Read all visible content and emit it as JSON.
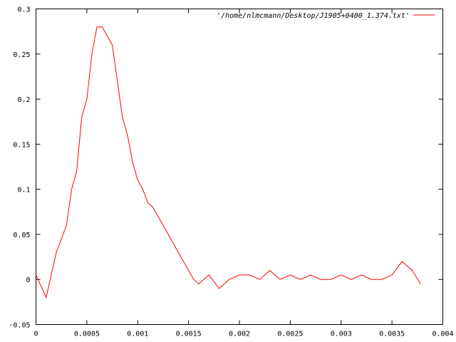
{
  "chart_data": {
    "type": "line",
    "title": "",
    "xlabel": "",
    "ylabel": "",
    "xlim": [
      0,
      0.004
    ],
    "ylim": [
      -0.05,
      0.3
    ],
    "grid": false,
    "legend_position": "top-right",
    "x_ticks": [
      "0",
      "0.0005",
      "0.001",
      "0.0015",
      "0.002",
      "0.0025",
      "0.003",
      "0.0035",
      "0.004"
    ],
    "x_tick_values": [
      0,
      0.0005,
      0.001,
      0.0015,
      0.002,
      0.0025,
      0.003,
      0.0035,
      0.004
    ],
    "y_ticks": [
      "-0.05",
      "0",
      "0.05",
      "0.1",
      "0.15",
      "0.2",
      "0.25",
      "0.3"
    ],
    "y_tick_values": [
      -0.05,
      0,
      0.05,
      0.1,
      0.15,
      0.2,
      0.25,
      0.3
    ],
    "series": [
      {
        "name": "'/home/nlmcmann/Desktop/J1905+0400_1.374.txt'",
        "color": "#ff0000",
        "x": [
          0.0,
          0.0001,
          0.0002,
          0.0003,
          0.00035,
          0.0004,
          0.00045,
          0.0005,
          0.00055,
          0.0006,
          0.00065,
          0.0007,
          0.00075,
          0.0008,
          0.00085,
          0.0009,
          0.00095,
          0.001,
          0.00105,
          0.0011,
          0.00115,
          0.0012,
          0.0013,
          0.0014,
          0.0015,
          0.00155,
          0.0016,
          0.0017,
          0.0018,
          0.0019,
          0.002,
          0.0021,
          0.0022,
          0.0023,
          0.0024,
          0.0025,
          0.0026,
          0.0027,
          0.0028,
          0.0029,
          0.003,
          0.0031,
          0.0032,
          0.0033,
          0.0034,
          0.0035,
          0.0036,
          0.0037,
          0.00378
        ],
        "y": [
          0.005,
          -0.02,
          0.03,
          0.06,
          0.1,
          0.12,
          0.18,
          0.2,
          0.25,
          0.28,
          0.28,
          0.27,
          0.26,
          0.22,
          0.18,
          0.16,
          0.13,
          0.11,
          0.1,
          0.085,
          0.08,
          0.07,
          0.05,
          0.03,
          0.01,
          0.0,
          -0.005,
          0.005,
          -0.01,
          0.0,
          0.005,
          0.005,
          0.0,
          0.01,
          0.0,
          0.005,
          0.0,
          0.005,
          0.0,
          0.0,
          0.005,
          0.0,
          0.005,
          0.0,
          0.0,
          0.005,
          0.02,
          0.01,
          -0.005
        ]
      }
    ]
  }
}
